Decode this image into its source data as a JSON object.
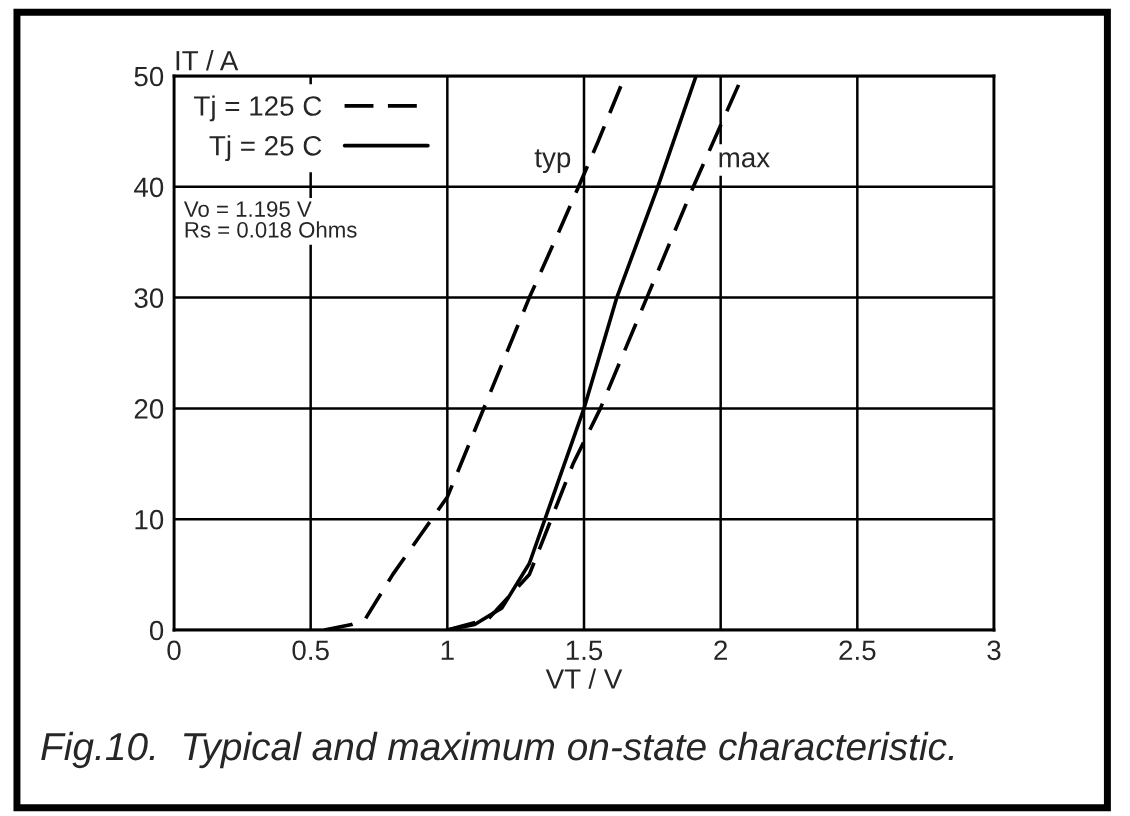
{
  "chart_data": {
    "type": "line",
    "xlabel": "VT / V",
    "ylabel": "IT / A",
    "xlim": [
      0,
      3
    ],
    "xticks": [
      0,
      0.5,
      1,
      1.5,
      2,
      2.5,
      3
    ],
    "ylim": [
      0,
      50
    ],
    "yticks": [
      0,
      10,
      20,
      30,
      40,
      50
    ],
    "grid": true,
    "legend": "top left",
    "marker": "none",
    "series": [
      {
        "name": "Tj = 125 C",
        "color": "#000000",
        "line_style": "dashed",
        "x": [
          0.55,
          0.65,
          0.7,
          0.8,
          0.9,
          1.0,
          1.1,
          1.2,
          1.3,
          1.4,
          1.48,
          1.55,
          1.65
        ],
        "values": [
          0,
          0.5,
          1,
          5,
          8.5,
          12,
          18,
          24,
          30,
          35.5,
          40,
          44,
          50
        ]
      },
      {
        "name": "Tj = 25 C",
        "color": "#000000",
        "line_style": "solid",
        "x": [
          1.0,
          1.1,
          1.2,
          1.3,
          1.4,
          1.5,
          1.62,
          1.77,
          1.91
        ],
        "values": [
          0,
          0.5,
          2,
          6,
          13,
          20,
          30,
          40,
          50
        ]
      },
      {
        "color": "#000000",
        "line_style": "dashed",
        "x": [
          1.0,
          1.15,
          1.3,
          1.38,
          1.46,
          1.56,
          1.73,
          1.9,
          2.08
        ],
        "values": [
          0,
          1,
          5,
          10,
          15,
          20,
          30,
          40,
          50
        ]
      }
    ],
    "annotations": [
      "typ",
      "max",
      "Vo = 1.195 V\nRs = 0.018 Ohms",
      "Fig.10.  Typical and maximum on-state characteristic."
    ]
  }
}
